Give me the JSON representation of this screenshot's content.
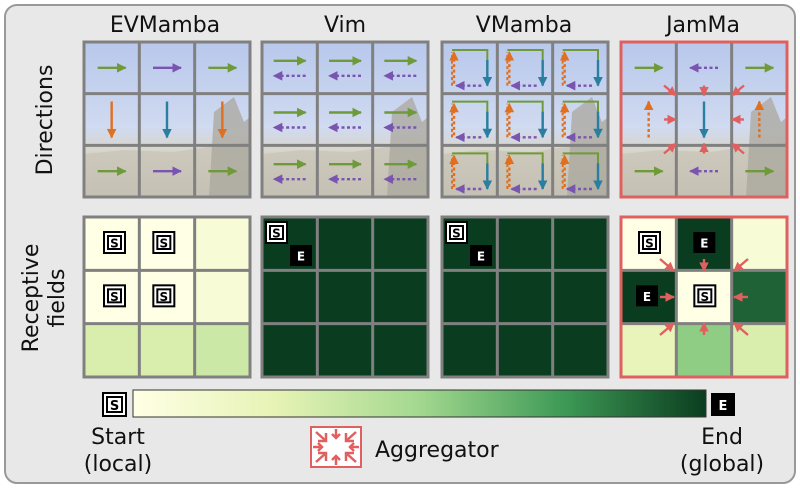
{
  "methods": [
    "EVMamba",
    "Vim",
    "VMamba",
    "JamMa"
  ],
  "row_labels": {
    "directions": "Directions",
    "receptive_line1": "Receptive",
    "receptive_line2": "fields"
  },
  "markers": {
    "start": "S",
    "end": "E"
  },
  "legend": {
    "start_line1": "Start",
    "start_line2": "(local)",
    "end_line1": "End",
    "end_line2": "(global)",
    "aggregator": "Aggregator"
  },
  "colors": {
    "green_arrow": "#6f9a3a",
    "purple_arrow": "#7a55b0",
    "orange_arrow": "#e07020",
    "teal_arrow": "#2a7ea0",
    "highlight": "#e06060",
    "grid_line": "#808080"
  },
  "receptive_fields": {
    "EVMamba": [
      [
        0.0,
        0.0,
        0.08
      ],
      [
        0.0,
        0.0,
        0.08
      ],
      [
        0.3,
        0.3,
        0.35
      ]
    ],
    "Vim": [
      [
        1,
        1,
        1
      ],
      [
        1,
        1,
        1
      ],
      [
        1,
        1,
        1
      ]
    ],
    "VMamba": [
      [
        1,
        1,
        1
      ],
      [
        1,
        1,
        1
      ],
      [
        1,
        1,
        1
      ]
    ],
    "JamMa": [
      [
        0.0,
        1.0,
        0.08
      ],
      [
        1.0,
        0.0,
        0.9
      ],
      [
        0.22,
        0.55,
        0.3
      ]
    ]
  }
}
